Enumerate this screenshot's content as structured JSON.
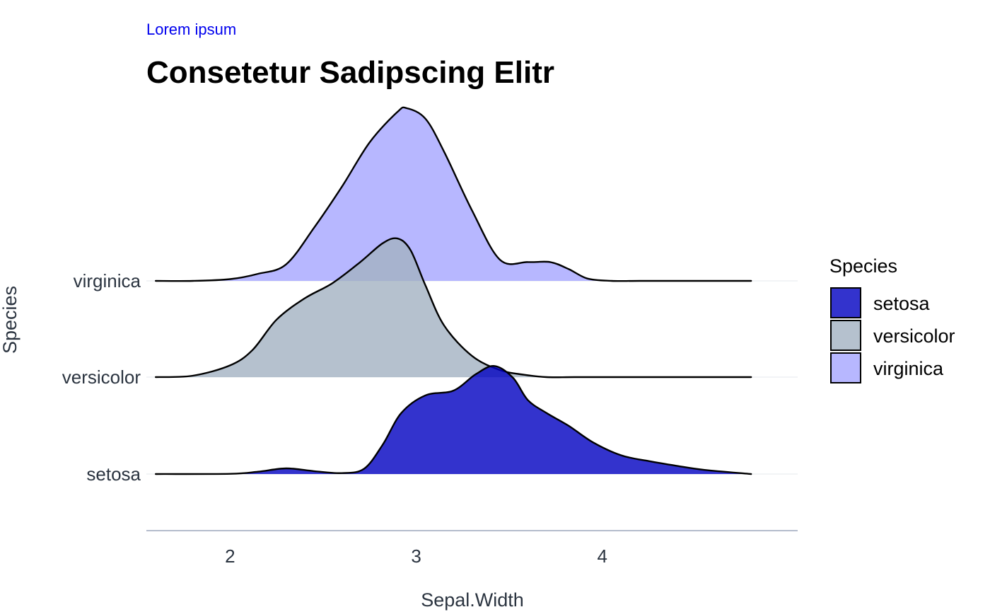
{
  "chart_data": {
    "type": "area",
    "subtitle": "Lorem ipsum",
    "title": "Consetetur Sadipscing Elitr",
    "xlabel": "Sepal.Width",
    "ylabel": "Species",
    "xlim": [
      1.55,
      5.05
    ],
    "x_ticks": [
      2,
      3,
      4
    ],
    "x_tick_labels": [
      "2",
      "3",
      "4"
    ],
    "categories": [
      "setosa",
      "versicolor",
      "virginica"
    ],
    "grid": true,
    "legend": {
      "title": "Species",
      "placement": "right",
      "entries": [
        "setosa",
        "versicolor",
        "virginica"
      ]
    },
    "colors": {
      "setosa": "#0000c0",
      "versicolor": "#a2b2c2",
      "virginica": "#a5a5ff"
    },
    "fill_opacity": 0.8,
    "series": [
      {
        "name": "setosa",
        "x": [
          1.6,
          2.0,
          2.15,
          2.3,
          2.45,
          2.6,
          2.72,
          2.82,
          2.92,
          3.05,
          3.2,
          3.32,
          3.42,
          3.52,
          3.6,
          3.7,
          3.82,
          3.95,
          4.1,
          4.25,
          4.4,
          4.55,
          4.8
        ],
        "density": [
          0.0,
          0.002,
          0.02,
          0.048,
          0.025,
          0.008,
          0.045,
          0.25,
          0.52,
          0.67,
          0.71,
          0.85,
          0.92,
          0.82,
          0.63,
          0.52,
          0.41,
          0.27,
          0.16,
          0.11,
          0.07,
          0.035,
          0.0
        ]
      },
      {
        "name": "versicolor",
        "x": [
          1.6,
          1.8,
          2.0,
          2.12,
          2.25,
          2.4,
          2.55,
          2.7,
          2.82,
          2.9,
          2.97,
          3.05,
          3.15,
          3.3,
          3.45,
          3.58,
          3.7,
          3.85,
          4.1,
          4.5,
          4.8
        ],
        "density": [
          0.0,
          0.012,
          0.1,
          0.23,
          0.49,
          0.67,
          0.8,
          0.98,
          1.14,
          1.18,
          1.08,
          0.78,
          0.44,
          0.18,
          0.06,
          0.02,
          0.0,
          0.0,
          0.0,
          0.0,
          0.0
        ]
      },
      {
        "name": "virginica",
        "x": [
          1.6,
          1.8,
          2.0,
          2.15,
          2.3,
          2.45,
          2.6,
          2.75,
          2.9,
          2.95,
          3.05,
          3.15,
          3.3,
          3.45,
          3.6,
          3.72,
          3.82,
          3.92,
          4.05,
          4.2,
          4.5,
          4.8
        ],
        "density": [
          0.0,
          0.0,
          0.015,
          0.06,
          0.14,
          0.45,
          0.8,
          1.18,
          1.44,
          1.47,
          1.38,
          1.1,
          0.6,
          0.18,
          0.16,
          0.16,
          0.1,
          0.02,
          0.0,
          0.0,
          0.0,
          0.0
        ]
      }
    ]
  }
}
